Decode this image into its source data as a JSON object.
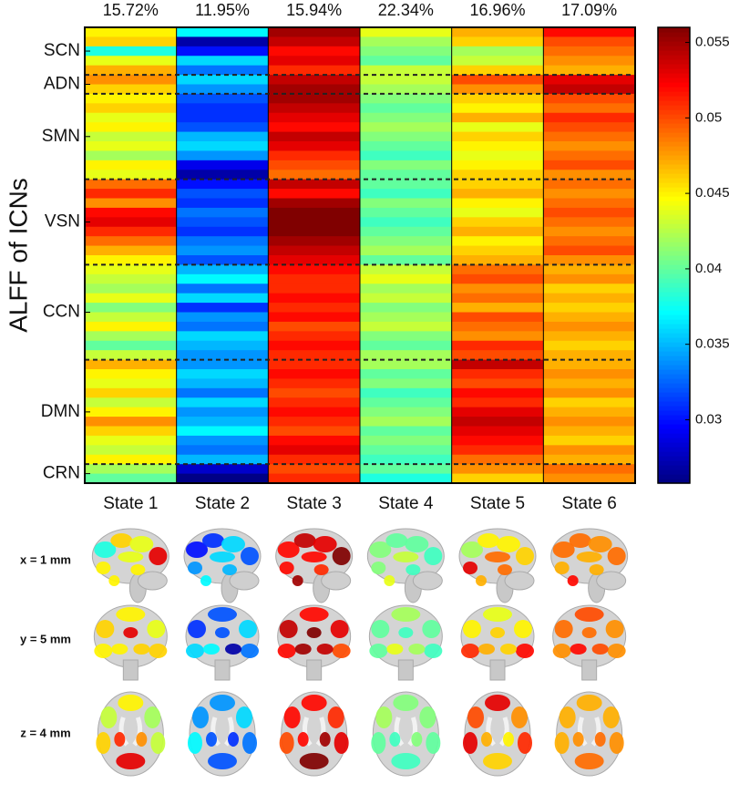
{
  "chart_data": {
    "type": "heatmap",
    "ylabel": "ALFF of ICNs",
    "columns": [
      "State 1",
      "State 2",
      "State 3",
      "State 4",
      "State 5",
      "State 6"
    ],
    "occupancy": {
      "values": [
        15.72,
        11.95,
        15.94,
        22.34,
        16.96,
        17.09
      ],
      "value_labels": [
        "15.72%",
        "11.95%",
        "15.94%",
        "22.34%",
        "16.96%",
        "17.09%"
      ]
    },
    "row_groups": [
      {
        "label": "SCN",
        "size": 5
      },
      {
        "label": "ADN",
        "size": 2
      },
      {
        "label": "SMN",
        "size": 9
      },
      {
        "label": "VSN",
        "size": 9
      },
      {
        "label": "CCN",
        "size": 10
      },
      {
        "label": "DMN",
        "size": 11
      },
      {
        "label": "CRN",
        "size": 2
      }
    ],
    "values": [
      [
        0.045,
        0.046,
        0.038,
        0.044,
        0.047,
        0.048,
        0.046,
        0.045,
        0.046,
        0.044,
        0.045,
        0.043,
        0.044,
        0.042,
        0.045,
        0.044,
        0.049,
        0.051,
        0.048,
        0.052,
        0.053,
        0.051,
        0.049,
        0.047,
        0.045,
        0.044,
        0.043,
        0.042,
        0.044,
        0.041,
        0.043,
        0.045,
        0.042,
        0.04,
        0.043,
        0.047,
        0.045,
        0.044,
        0.046,
        0.043,
        0.045,
        0.048,
        0.046,
        0.044,
        0.043,
        0.045,
        0.042,
        0.04
      ],
      [
        0.037,
        0.027,
        0.03,
        0.036,
        0.033,
        0.036,
        0.034,
        0.032,
        0.031,
        0.031,
        0.032,
        0.035,
        0.036,
        0.034,
        0.029,
        0.027,
        0.03,
        0.032,
        0.031,
        0.033,
        0.032,
        0.031,
        0.033,
        0.034,
        0.032,
        0.035,
        0.037,
        0.033,
        0.036,
        0.031,
        0.034,
        0.033,
        0.036,
        0.035,
        0.034,
        0.034,
        0.036,
        0.035,
        0.033,
        0.036,
        0.034,
        0.035,
        0.037,
        0.034,
        0.033,
        0.035,
        0.028,
        0.026
      ],
      [
        0.055,
        0.054,
        0.052,
        0.053,
        0.051,
        0.054,
        0.055,
        0.055,
        0.054,
        0.053,
        0.052,
        0.054,
        0.053,
        0.051,
        0.05,
        0.049,
        0.054,
        0.052,
        0.055,
        0.056,
        0.056,
        0.056,
        0.055,
        0.054,
        0.053,
        0.052,
        0.051,
        0.051,
        0.052,
        0.051,
        0.052,
        0.05,
        0.051,
        0.052,
        0.051,
        0.051,
        0.052,
        0.051,
        0.05,
        0.051,
        0.052,
        0.051,
        0.05,
        0.052,
        0.053,
        0.051,
        0.05,
        0.051
      ],
      [
        0.044,
        0.042,
        0.041,
        0.04,
        0.043,
        0.043,
        0.042,
        0.041,
        0.04,
        0.041,
        0.042,
        0.041,
        0.04,
        0.039,
        0.041,
        0.04,
        0.04,
        0.039,
        0.041,
        0.04,
        0.039,
        0.04,
        0.041,
        0.042,
        0.04,
        0.043,
        0.044,
        0.042,
        0.043,
        0.041,
        0.042,
        0.043,
        0.041,
        0.04,
        0.042,
        0.042,
        0.04,
        0.041,
        0.039,
        0.04,
        0.041,
        0.042,
        0.04,
        0.041,
        0.04,
        0.039,
        0.04,
        0.038
      ],
      [
        0.047,
        0.046,
        0.042,
        0.043,
        0.046,
        0.05,
        0.048,
        0.046,
        0.045,
        0.047,
        0.044,
        0.046,
        0.045,
        0.044,
        0.045,
        0.046,
        0.046,
        0.047,
        0.045,
        0.044,
        0.046,
        0.047,
        0.045,
        0.046,
        0.047,
        0.049,
        0.05,
        0.048,
        0.049,
        0.047,
        0.05,
        0.049,
        0.048,
        0.051,
        0.05,
        0.054,
        0.051,
        0.05,
        0.052,
        0.051,
        0.053,
        0.054,
        0.053,
        0.052,
        0.051,
        0.049,
        0.048,
        0.046
      ],
      [
        0.052,
        0.05,
        0.049,
        0.048,
        0.047,
        0.053,
        0.054,
        0.05,
        0.049,
        0.051,
        0.05,
        0.049,
        0.048,
        0.049,
        0.05,
        0.048,
        0.049,
        0.048,
        0.049,
        0.05,
        0.049,
        0.048,
        0.049,
        0.05,
        0.048,
        0.047,
        0.048,
        0.046,
        0.047,
        0.046,
        0.047,
        0.048,
        0.047,
        0.046,
        0.047,
        0.047,
        0.048,
        0.047,
        0.048,
        0.046,
        0.047,
        0.048,
        0.047,
        0.046,
        0.048,
        0.047,
        0.049,
        0.048
      ]
    ],
    "zlim": [
      0.0258,
      0.056
    ],
    "zticks": [
      0.03,
      0.035,
      0.04,
      0.045,
      0.05,
      0.055
    ],
    "colormap": "jet",
    "brain_views": [
      "x = 1 mm",
      "y = 5 mm",
      "z = 4 mm"
    ]
  }
}
